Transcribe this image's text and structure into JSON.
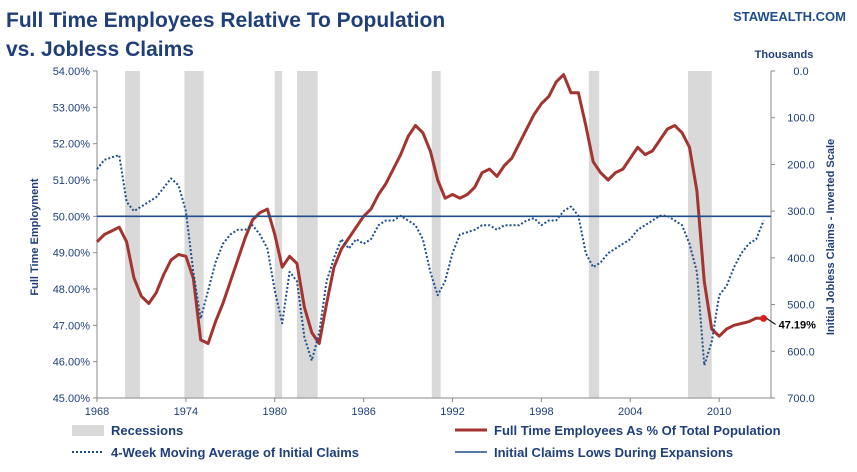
{
  "brand": "STAWEALTH.COM",
  "chart_data": {
    "type": "line",
    "title_lines": [
      "Full Time Employees Relative To Population",
      "vs. Jobless Claims"
    ],
    "ylabel_left": "Full Time Employment",
    "ylabel_right": "Initial Jobless Claims - Inverted Scale",
    "right_axis_unit": "Thousands",
    "x_ticks": [
      "1968",
      "1974",
      "1980",
      "1986",
      "1992",
      "1998",
      "2004",
      "2010"
    ],
    "x_range": [
      1968,
      2013.5
    ],
    "y_left_ticks": [
      "54.00%",
      "53.00%",
      "52.00%",
      "51.00%",
      "50.00%",
      "49.00%",
      "48.00%",
      "47.00%",
      "46.00%",
      "45.00%"
    ],
    "y_left_range": [
      45,
      54
    ],
    "y_right_ticks": [
      "0.0",
      "100.0",
      "200.0",
      "300.0",
      "400.0",
      "500.0",
      "600.0",
      "700.0"
    ],
    "y_right_range": [
      0,
      700
    ],
    "y_right_inverted": true,
    "legend_placement": "bottom",
    "recessions": [
      [
        1969.9,
        1970.9
      ],
      [
        1973.9,
        1975.2
      ],
      [
        1980.0,
        1980.5
      ],
      [
        1981.5,
        1982.9
      ],
      [
        1990.6,
        1991.2
      ],
      [
        2001.2,
        2001.9
      ],
      [
        2007.9,
        2009.5
      ]
    ],
    "series": [
      {
        "name": "Full Time Employees As % Of Total Population",
        "axis": "left",
        "color": "#a3342f",
        "style": "solid",
        "x": [
          1968.0,
          1968.5,
          1969.0,
          1969.5,
          1970.0,
          1970.5,
          1971.0,
          1971.5,
          1972.0,
          1972.5,
          1973.0,
          1973.5,
          1974.0,
          1974.5,
          1975.0,
          1975.5,
          1976.0,
          1976.5,
          1977.0,
          1977.5,
          1978.0,
          1978.5,
          1979.0,
          1979.5,
          1980.0,
          1980.5,
          1981.0,
          1981.5,
          1982.0,
          1982.5,
          1983.0,
          1983.5,
          1984.0,
          1984.5,
          1985.0,
          1985.5,
          1986.0,
          1986.5,
          1987.0,
          1987.5,
          1988.0,
          1988.5,
          1989.0,
          1989.5,
          1990.0,
          1990.5,
          1991.0,
          1991.5,
          1992.0,
          1992.5,
          1993.0,
          1993.5,
          1994.0,
          1994.5,
          1995.0,
          1995.5,
          1996.0,
          1996.5,
          1997.0,
          1997.5,
          1998.0,
          1998.5,
          1999.0,
          1999.5,
          2000.0,
          2000.5,
          2001.0,
          2001.5,
          2002.0,
          2002.5,
          2003.0,
          2003.5,
          2004.0,
          2004.5,
          2005.0,
          2005.5,
          2006.0,
          2006.5,
          2007.0,
          2007.5,
          2008.0,
          2008.5,
          2009.0,
          2009.5,
          2010.0,
          2010.5,
          2011.0,
          2011.5,
          2012.0,
          2012.5,
          2013.0
        ],
        "values": [
          49.3,
          49.5,
          49.6,
          49.7,
          49.3,
          48.3,
          47.8,
          47.6,
          47.9,
          48.4,
          48.8,
          48.95,
          48.9,
          48.3,
          46.6,
          46.5,
          47.1,
          47.6,
          48.2,
          48.8,
          49.4,
          49.9,
          50.1,
          50.2,
          49.5,
          48.6,
          48.9,
          48.7,
          47.5,
          46.8,
          46.5,
          47.6,
          48.6,
          49.1,
          49.4,
          49.7,
          50.0,
          50.2,
          50.6,
          50.9,
          51.3,
          51.7,
          52.2,
          52.5,
          52.3,
          51.8,
          51.0,
          50.5,
          50.6,
          50.5,
          50.6,
          50.8,
          51.2,
          51.3,
          51.1,
          51.4,
          51.6,
          52.0,
          52.4,
          52.8,
          53.1,
          53.3,
          53.7,
          53.9,
          53.4,
          53.4,
          52.5,
          51.5,
          51.2,
          51.0,
          51.2,
          51.3,
          51.6,
          51.9,
          51.7,
          51.8,
          52.1,
          52.4,
          52.5,
          52.3,
          51.9,
          50.7,
          48.2,
          46.9,
          46.7,
          46.9,
          47.0,
          47.05,
          47.1,
          47.2,
          47.19
        ]
      },
      {
        "name": "4-Week Moving Average of Initial Claims",
        "axis": "right",
        "color": "#1f4e8c",
        "style": "dotted",
        "x": [
          1968.0,
          1968.5,
          1969.0,
          1969.5,
          1970.0,
          1970.5,
          1971.0,
          1971.5,
          1972.0,
          1972.5,
          1973.0,
          1973.5,
          1974.0,
          1974.5,
          1975.0,
          1975.5,
          1976.0,
          1976.5,
          1977.0,
          1977.5,
          1978.0,
          1978.5,
          1979.0,
          1979.5,
          1980.0,
          1980.5,
          1981.0,
          1981.5,
          1982.0,
          1982.5,
          1983.0,
          1983.5,
          1984.0,
          1984.5,
          1985.0,
          1985.5,
          1986.0,
          1986.5,
          1987.0,
          1987.5,
          1988.0,
          1988.5,
          1989.0,
          1989.5,
          1990.0,
          1990.5,
          1991.0,
          1991.5,
          1992.0,
          1992.5,
          1993.0,
          1993.5,
          1994.0,
          1994.5,
          1995.0,
          1995.5,
          1996.0,
          1996.5,
          1997.0,
          1997.5,
          1998.0,
          1998.5,
          1999.0,
          1999.5,
          2000.0,
          2000.5,
          2001.0,
          2001.5,
          2002.0,
          2002.5,
          2003.0,
          2003.5,
          2004.0,
          2004.5,
          2005.0,
          2005.5,
          2006.0,
          2006.5,
          2007.0,
          2007.5,
          2008.0,
          2008.5,
          2009.0,
          2009.5,
          2010.0,
          2010.5,
          2011.0,
          2011.5,
          2012.0,
          2012.5,
          2013.0
        ],
        "values": [
          210,
          190,
          185,
          180,
          280,
          300,
          290,
          280,
          270,
          250,
          230,
          245,
          300,
          430,
          530,
          470,
          410,
          370,
          350,
          340,
          340,
          330,
          350,
          380,
          470,
          540,
          430,
          450,
          570,
          620,
          560,
          450,
          400,
          360,
          380,
          360,
          370,
          360,
          330,
          320,
          320,
          310,
          320,
          330,
          360,
          430,
          480,
          450,
          390,
          350,
          345,
          340,
          330,
          330,
          340,
          330,
          330,
          330,
          320,
          315,
          330,
          320,
          320,
          300,
          290,
          310,
          390,
          420,
          410,
          390,
          380,
          370,
          360,
          340,
          330,
          320,
          310,
          310,
          320,
          330,
          370,
          430,
          630,
          580,
          480,
          460,
          420,
          390,
          370,
          360,
          320
        ]
      },
      {
        "name": "Initial Claims Lows During Expansions",
        "axis": "left",
        "color": "#1f4e8c",
        "style": "solid",
        "x": [
          1968,
          2013.5
        ],
        "values": [
          50.0,
          50.0
        ]
      }
    ],
    "annotations": [
      {
        "text": "47.19%",
        "x": 2013.0,
        "y": 47.19
      }
    ],
    "legend": [
      {
        "label": "Recessions",
        "kind": "box",
        "color": "#d9d9d9"
      },
      {
        "label": "Full Time Employees As % Of Total Population",
        "kind": "line",
        "color": "#a3342f"
      },
      {
        "label": "4-Week Moving Average of Initial Claims",
        "kind": "dotted",
        "color": "#1f4e8c"
      },
      {
        "label": "Initial Claims Lows During Expansions",
        "kind": "line",
        "color": "#1f4e8c"
      }
    ],
    "grid": false
  }
}
